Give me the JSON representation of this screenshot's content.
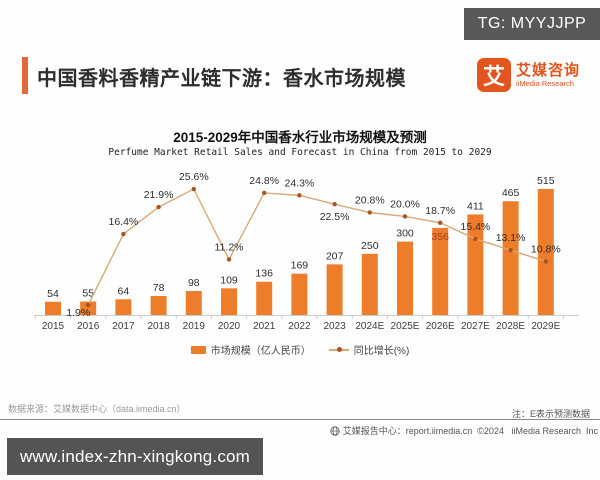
{
  "tg_badge": "TG: MYYJJPP",
  "header": {
    "title": "中国香料香精产业链下游：香水市场规模",
    "logo": {
      "glyph": "艾",
      "name_cn": "艾媒咨询",
      "name_en": "iiMedia Research"
    }
  },
  "chart_data": {
    "type": "bar",
    "title": "2015-2029年中国香水行业市场规模及预测",
    "subtitle": "Perfume Market Retail Sales and Forecast in China from 2015 to 2029",
    "categories": [
      "2015",
      "2016",
      "2017",
      "2018",
      "2019",
      "2020",
      "2021",
      "2022",
      "2023",
      "2024E",
      "2025E",
      "2026E",
      "2027E",
      "2028E",
      "2029E"
    ],
    "series": [
      {
        "name": "市场规模（亿人民币）",
        "type": "bar",
        "values": [
          54,
          55,
          64,
          78,
          98,
          109,
          136,
          169,
          207,
          250,
          300,
          356,
          411,
          465,
          515
        ]
      },
      {
        "name": "同比增长(%)",
        "type": "line",
        "values": [
          null,
          1.9,
          16.4,
          21.9,
          25.6,
          11.2,
          24.8,
          24.3,
          22.5,
          20.8,
          20.0,
          18.7,
          15.4,
          13.1,
          10.8
        ]
      }
    ],
    "ylim": [
      0,
      560
    ],
    "y2lim": [
      0,
      30
    ],
    "grid": false,
    "legend_position": "bottom",
    "colors": {
      "bar": "#ed7c2b",
      "line": "#d8a878",
      "marker": "#a8541e"
    }
  },
  "footer": {
    "source": "数据来源：艾媒数据中心（data.iimedia.cn）",
    "note": "注：E表示预测数据",
    "report": "艾媒报告中心：report.iimedia.cn  ©2024   iiMedia Research  Inc"
  },
  "bottom_bar": {
    "url": "www.index-zhn-xingkong.com"
  }
}
